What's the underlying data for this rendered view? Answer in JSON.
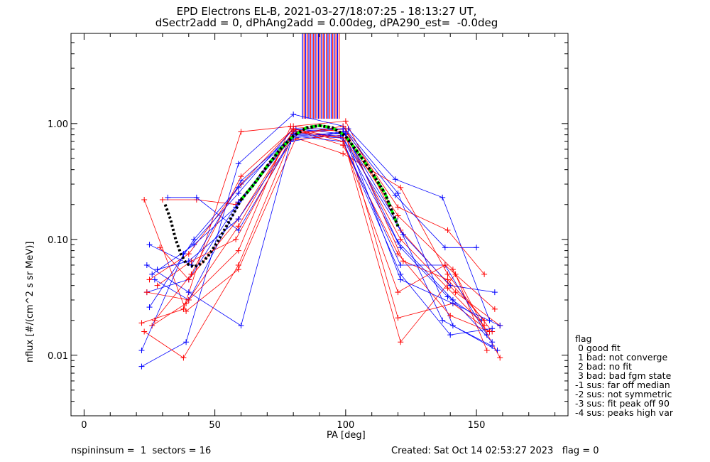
{
  "title_line1": "EPD Electrons EL-B, 2021-03-27/18:07:25 - 18:13:27 UT,",
  "title_line2": "dSectr2add = 0, dPhAng2add = 0.00deg, dPA290_est=  -0.0deg",
  "footer": {
    "left": "nspininsum =  1  sectors = 16",
    "right": "Created: Sat Oct 14 02:53:27 2023   flag = 0"
  },
  "legend": {
    "title": "flag",
    "items": [
      " 0 good fit",
      " 1 bad: not converge",
      " 2 bad: no fit",
      " 3 bad: bad fgm state",
      "-1 sus: far off median",
      "-2 sus: not symmetric",
      "-3 sus: fit peak off 90",
      "-4 sus: peaks high var"
    ]
  },
  "colors": {
    "red": "#ff0000",
    "blue": "#0000ff",
    "green": "#00ff00",
    "black": "#000000"
  },
  "chart_data": {
    "type": "line",
    "xlabel": "PA [deg]",
    "ylabel": "nflux [#/(cm^2 s sr MeV)]",
    "xlim": [
      -5,
      185
    ],
    "ylim": [
      0.003,
      6.0
    ],
    "ylog": true,
    "x_ticks": [
      0,
      50,
      100,
      150
    ],
    "y_ticks": [
      {
        "v": 0.01,
        "label": "0.01"
      },
      {
        "v": 0.1,
        "label": "0.10"
      },
      {
        "v": 1.0,
        "label": "1.00"
      }
    ],
    "vertical_marker_lines": {
      "x_range": [
        83.5,
        97.5
      ],
      "y_range": [
        1.1,
        6.0
      ],
      "count": 24
    },
    "fit_curves": [
      {
        "color": "black",
        "style": "dotted",
        "x": [
          31,
          33,
          35,
          37,
          39,
          42,
          45,
          48,
          51,
          54,
          57,
          60
        ],
        "y": [
          0.2,
          0.15,
          0.1,
          0.075,
          0.062,
          0.058,
          0.062,
          0.075,
          0.095,
          0.125,
          0.165,
          0.22
        ]
      },
      {
        "color": "green",
        "style": "dashed",
        "x": [
          60,
          65,
          70,
          75,
          80,
          85,
          90,
          95,
          100,
          105,
          110,
          115,
          120
        ],
        "y": [
          0.22,
          0.3,
          0.43,
          0.6,
          0.78,
          0.92,
          0.96,
          0.92,
          0.78,
          0.55,
          0.38,
          0.25,
          0.13
        ]
      },
      {
        "color": "black",
        "style": "dotted",
        "x": [
          60,
          65,
          70,
          75,
          80,
          85,
          90,
          95,
          100,
          105,
          110,
          115,
          120
        ],
        "y": [
          0.22,
          0.3,
          0.43,
          0.6,
          0.78,
          0.92,
          0.96,
          0.92,
          0.78,
          0.55,
          0.38,
          0.25,
          0.13
        ]
      }
    ],
    "series": [
      {
        "color": "red",
        "x": [
          22,
          38,
          60,
          80,
          100,
          121,
          142,
          159
        ],
        "y": [
          0.019,
          0.025,
          0.85,
          0.95,
          1.05,
          0.12,
          0.035,
          0.018
        ]
      },
      {
        "color": "blue",
        "x": [
          22,
          39,
          59,
          80,
          99,
          120,
          141,
          158
        ],
        "y": [
          0.008,
          0.013,
          0.45,
          1.2,
          0.95,
          0.25,
          0.018,
          0.011
        ]
      },
      {
        "color": "red",
        "x": [
          23,
          39,
          59,
          81,
          99,
          121,
          139,
          156
        ],
        "y": [
          0.22,
          0.024,
          0.055,
          0.75,
          0.55,
          0.28,
          0.05,
          0.016
        ]
      },
      {
        "color": "blue",
        "x": [
          24,
          40,
          60,
          80,
          101,
          119,
          137,
          155
        ],
        "y": [
          0.06,
          0.035,
          0.018,
          0.85,
          0.9,
          0.33,
          0.23,
          0.02
        ]
      },
      {
        "color": "red",
        "x": [
          30,
          43,
          58,
          80,
          99,
          120,
          139,
          153
        ],
        "y": [
          0.22,
          0.22,
          0.2,
          0.8,
          0.95,
          0.19,
          0.12,
          0.05
        ]
      },
      {
        "color": "blue",
        "x": [
          32,
          43,
          59,
          79,
          100,
          119,
          138,
          150
        ],
        "y": [
          0.23,
          0.23,
          0.12,
          0.7,
          0.85,
          0.24,
          0.085,
          0.085
        ]
      },
      {
        "color": "red",
        "x": [
          25,
          40,
          60,
          80,
          99,
          121,
          142,
          154
        ],
        "y": [
          0.045,
          0.075,
          0.3,
          0.9,
          0.75,
          0.013,
          0.05,
          0.011
        ]
      },
      {
        "color": "blue",
        "x": [
          25,
          41,
          60,
          80,
          99,
          122,
          140,
          157
        ],
        "y": [
          0.09,
          0.06,
          0.32,
          0.8,
          0.75,
          0.11,
          0.04,
          0.035
        ]
      },
      {
        "color": "red",
        "x": [
          23,
          38,
          59,
          79,
          100,
          120,
          141,
          155
        ],
        "y": [
          0.016,
          0.0095,
          0.06,
          0.72,
          0.8,
          0.021,
          0.028,
          0.016
        ]
      },
      {
        "color": "blue",
        "x": [
          24,
          40,
          59,
          81,
          98,
          121,
          139,
          152
        ],
        "y": [
          0.035,
          0.045,
          0.21,
          0.9,
          0.82,
          0.085,
          0.032,
          0.02
        ]
      },
      {
        "color": "red",
        "x": [
          26,
          39,
          59,
          80,
          99,
          120,
          140,
          155
        ],
        "y": [
          0.018,
          0.028,
          0.13,
          0.88,
          0.65,
          0.075,
          0.022,
          0.016
        ]
      },
      {
        "color": "blue",
        "x": [
          27,
          40,
          60,
          80,
          99,
          121,
          140,
          156
        ],
        "y": [
          0.045,
          0.03,
          0.22,
          0.78,
          0.7,
          0.05,
          0.015,
          0.017
        ]
      },
      {
        "color": "red",
        "x": [
          28,
          41,
          58,
          80,
          100,
          122,
          139,
          153
        ],
        "y": [
          0.04,
          0.065,
          0.1,
          0.82,
          0.9,
          0.065,
          0.045,
          0.02
        ]
      },
      {
        "color": "blue",
        "x": [
          26,
          42,
          58,
          81,
          98,
          121,
          138,
          154
        ],
        "y": [
          0.05,
          0.09,
          0.19,
          0.83,
          0.78,
          0.06,
          0.06,
          0.015
        ]
      },
      {
        "color": "red",
        "x": [
          24,
          40,
          59,
          79,
          99,
          120,
          141,
          159
        ],
        "y": [
          0.035,
          0.03,
          0.08,
          0.95,
          0.85,
          0.16,
          0.055,
          0.0095
        ]
      },
      {
        "color": "blue",
        "x": [
          22,
          38,
          59,
          80,
          99,
          121,
          141,
          159
        ],
        "y": [
          0.011,
          0.075,
          0.25,
          0.9,
          0.9,
          0.045,
          0.028,
          0.018
        ]
      },
      {
        "color": "red",
        "x": [
          29,
          40,
          59,
          80,
          100,
          121,
          139,
          153
        ],
        "y": [
          0.085,
          0.045,
          0.15,
          0.85,
          0.75,
          0.1,
          0.038,
          0.018
        ]
      },
      {
        "color": "blue",
        "x": [
          25,
          42,
          59,
          80,
          100,
          120,
          141,
          156
        ],
        "y": [
          0.026,
          0.1,
          0.28,
          0.8,
          0.82,
          0.095,
          0.03,
          0.013
        ]
      },
      {
        "color": "red",
        "x": [
          27,
          41,
          60,
          80,
          99,
          120,
          138,
          157
        ],
        "y": [
          0.02,
          0.05,
          0.35,
          0.9,
          0.7,
          0.035,
          0.06,
          0.025
        ]
      },
      {
        "color": "blue",
        "x": [
          28,
          40,
          59,
          80,
          99,
          119,
          137,
          156
        ],
        "y": [
          0.055,
          0.065,
          0.15,
          0.75,
          0.85,
          0.15,
          0.02,
          0.012
        ]
      }
    ]
  }
}
